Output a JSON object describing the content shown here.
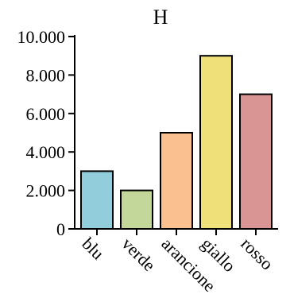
{
  "chart_data": {
    "type": "bar",
    "title": "H",
    "xlabel": "",
    "ylabel": "",
    "categories": [
      "blu",
      "verde",
      "arancione",
      "giallo",
      "rosso"
    ],
    "values": [
      3000,
      2000,
      5000,
      9000,
      7000
    ],
    "colors": [
      "#92cddc",
      "#c4d79b",
      "#fac08f",
      "#f0e07a",
      "#d99594"
    ],
    "ylim": [
      0,
      10000
    ],
    "yticks": [
      0,
      2000,
      4000,
      6000,
      8000,
      10000
    ],
    "ytick_labels": [
      "0",
      "2.000",
      "4.000",
      "6.000",
      "8.000",
      "10.000"
    ],
    "grid": false,
    "legend": "none"
  }
}
